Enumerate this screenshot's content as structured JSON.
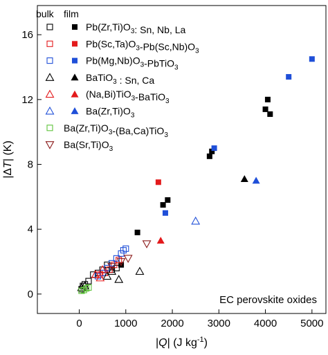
{
  "chart_data": {
    "type": "scatter",
    "title": "",
    "xlabel": "|Q| (J kg-1)",
    "ylabel": "|ΔT| (K)",
    "xlim": [
      -900,
      5300
    ],
    "ylim": [
      -1.2,
      17.8
    ],
    "xticks": [
      0,
      1000,
      2000,
      3000,
      4000,
      5000
    ],
    "yticks": [
      0,
      4,
      8,
      12,
      16
    ],
    "grid": false,
    "legend_position": "top-left",
    "legend_headers": {
      "bulk": "bulk",
      "film": "film"
    },
    "annotation": "EC perovskite oxides",
    "series": [
      {
        "name": "Pb(Zr,Ti)O3: Sn, Nb, La",
        "color": "#000000",
        "marker": "square",
        "bulk": [
          [
            50,
            0.3
          ],
          [
            80,
            0.5
          ],
          [
            120,
            0.6
          ],
          [
            200,
            0.8
          ],
          [
            300,
            1.2
          ],
          [
            400,
            1.3
          ],
          [
            500,
            1.5
          ],
          [
            600,
            1.8
          ],
          [
            700,
            1.5
          ],
          [
            800,
            1.6
          ]
        ],
        "film": [
          [
            900,
            1.8
          ],
          [
            1250,
            3.8
          ],
          [
            1800,
            5.5
          ],
          [
            1900,
            5.8
          ],
          [
            2800,
            8.5
          ],
          [
            2850,
            8.8
          ],
          [
            4000,
            11.4
          ],
          [
            4050,
            12.0
          ],
          [
            4100,
            11.1
          ]
        ]
      },
      {
        "name": "Pb(Sc,Ta)O3-Pb(Sc,Nb)O3",
        "color": "#e31a1c",
        "marker": "square",
        "bulk": [
          [
            450,
            1.2
          ],
          [
            550,
            1.3
          ],
          [
            650,
            1.5
          ],
          [
            750,
            1.8
          ],
          [
            850,
            2.1
          ]
        ],
        "film": [
          [
            1700,
            6.9
          ]
        ]
      },
      {
        "name": "Pb(Mg,Nb)O3-PbTiO3",
        "color": "#1f4fd8",
        "marker": "square",
        "bulk": [
          [
            400,
            1.1
          ],
          [
            500,
            1.3
          ],
          [
            600,
            1.6
          ],
          [
            700,
            1.9
          ],
          [
            800,
            2.2
          ],
          [
            900,
            2.5
          ],
          [
            950,
            2.7
          ],
          [
            1000,
            2.8
          ]
        ],
        "film": [
          [
            1850,
            5.0
          ],
          [
            2900,
            9.0
          ],
          [
            4500,
            13.4
          ],
          [
            5000,
            14.5
          ]
        ]
      },
      {
        "name": "BaTiO3 : Sn, Ca",
        "color": "#000000",
        "marker": "triangle",
        "bulk": [
          [
            50,
            0.4
          ],
          [
            120,
            0.5
          ],
          [
            600,
            1.1
          ],
          [
            700,
            1.4
          ],
          [
            850,
            0.9
          ],
          [
            1300,
            1.4
          ]
        ],
        "film": [
          [
            3550,
            7.1
          ]
        ]
      },
      {
        "name": "(Na,Bi)TiO3-BaTiO3",
        "color": "#e31a1c",
        "marker": "triangle",
        "bulk": [
          [
            350,
            1.2
          ],
          [
            450,
            1.0
          ],
          [
            500,
            1.5
          ]
        ],
        "film": [
          [
            1750,
            3.3
          ]
        ]
      },
      {
        "name": "Ba(Zr,Ti)O3",
        "color": "#1f4fd8",
        "marker": "triangle",
        "bulk": [
          [
            2500,
            4.5
          ]
        ],
        "film": [
          [
            3800,
            7.0
          ]
        ]
      },
      {
        "name": "Ba(Zr,Ti)O3-(Ba,Ca)TiO3",
        "color": "#5ec33a",
        "marker": "square",
        "bulk": [
          [
            50,
            0.2
          ],
          [
            100,
            0.25
          ],
          [
            150,
            0.35
          ],
          [
            200,
            0.4
          ]
        ],
        "film": []
      },
      {
        "name": "Ba(Sr,Ti)O3",
        "color": "#8b1a1a",
        "marker": "inverted-triangle",
        "bulk": [
          [
            700,
            1.7
          ],
          [
            900,
            2.0
          ],
          [
            1050,
            2.2
          ],
          [
            1450,
            3.1
          ]
        ],
        "film": []
      }
    ]
  }
}
